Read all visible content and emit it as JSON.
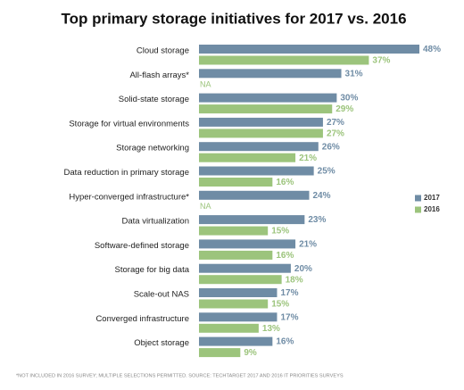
{
  "chart_data": {
    "type": "bar",
    "orientation": "horizontal",
    "title": "Top primary storage initiatives for 2017 vs. 2016",
    "categories": [
      "Cloud storage",
      "All-flash arrays*",
      "Solid-state storage",
      "Storage for virtual environments",
      "Storage networking",
      "Data reduction in primary storage",
      "Hyper-converged infrastructure*",
      "Data virtualization",
      "Software-defined storage",
      "Storage for big data",
      "Scale-out NAS",
      "Converged infrastructure",
      "Object storage"
    ],
    "series": [
      {
        "name": "2017",
        "color": "#6f8ca5",
        "values": [
          48,
          31,
          30,
          27,
          26,
          25,
          24,
          23,
          21,
          20,
          17,
          17,
          16
        ],
        "value_labels": [
          "48%",
          "31%",
          "30%",
          "27%",
          "26%",
          "25%",
          "24%",
          "23%",
          "21%",
          "20%",
          "17%",
          "17%",
          "16%"
        ]
      },
      {
        "name": "2016",
        "color": "#9cc47c",
        "values": [
          37,
          null,
          29,
          27,
          21,
          16,
          null,
          15,
          16,
          18,
          15,
          13,
          9
        ],
        "value_labels": [
          "37%",
          "NA",
          "29%",
          "27%",
          "21%",
          "16%",
          "NA",
          "15%",
          "16%",
          "18%",
          "15%",
          "13%",
          "9%"
        ]
      }
    ],
    "legend": "right",
    "footnote": "*NOT INCLUDED IN 2016 SURVEY; MULTIPLE SELECTIONS PERMITTED. SOURCE: TECHTARGET 2017 AND 2016 IT PRIORITIES SURVEYS"
  }
}
